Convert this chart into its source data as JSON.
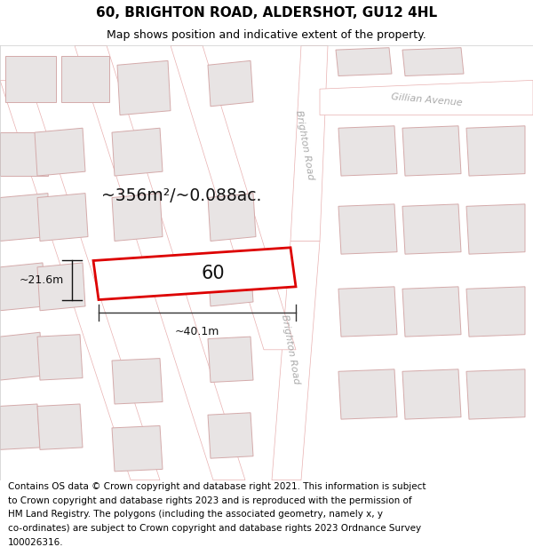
{
  "title": "60, BRIGHTON ROAD, ALDERSHOT, GU12 4HL",
  "subtitle": "Map shows position and indicative extent of the property.",
  "area_text": "~356m²/~0.088ac.",
  "width_label": "~40.1m",
  "height_label": "~21.6m",
  "property_number": "60",
  "road_label_upper": "Brighton Road",
  "road_label_lower": "Brighton Road",
  "avenue_label": "Gillian Avenue",
  "footer_lines": [
    "Contains OS data © Crown copyright and database right 2021. This information is subject",
    "to Crown copyright and database rights 2023 and is reproduced with the permission of",
    "HM Land Registry. The polygons (including the associated geometry, namely x, y",
    "co-ordinates) are subject to Crown copyright and database rights 2023 Ordnance Survey",
    "100026316."
  ],
  "map_bg": "#ffffff",
  "building_fill": "#e8e4e4",
  "building_edge": "#d4aaaa",
  "road_fill": "#ffffff",
  "road_edge": "#e8b0b0",
  "highlight_fill": "#ffffff",
  "highlight_edge": "#dd0000",
  "title_fontsize": 11,
  "subtitle_fontsize": 9,
  "footer_fontsize": 7.5,
  "road_label_color": "#aaaaaa",
  "road_label_fontsize": 8
}
